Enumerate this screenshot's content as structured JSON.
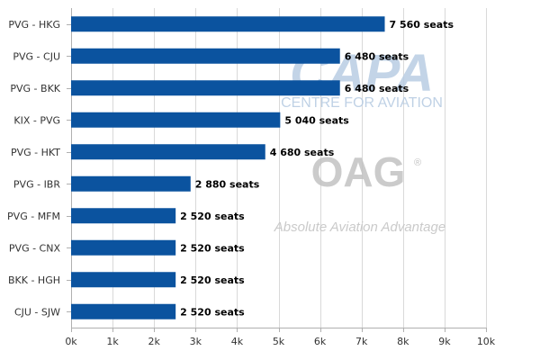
{
  "chart_data": {
    "type": "bar",
    "orientation": "horizontal",
    "categories": [
      "PVG - HKG",
      "PVG - CJU",
      "PVG - BKK",
      "KIX - PVG",
      "PVG - HKT",
      "PVG - IBR",
      "PVG - MFM",
      "PVG - CNX",
      "BKK - HGH",
      "CJU - SJW"
    ],
    "values": [
      7560,
      6480,
      6480,
      5040,
      4680,
      2880,
      2520,
      2520,
      2520,
      2520
    ],
    "data_labels": [
      "7 560 seats",
      "6 480 seats",
      "6 480 seats",
      "5 040 seats",
      "4 680 seats",
      "2 880 seats",
      "2 520 seats",
      "2 520 seats",
      "2 520 seats",
      "2 520 seats"
    ],
    "xlim": [
      0,
      10000
    ],
    "xticks": [
      0,
      1000,
      2000,
      3000,
      4000,
      5000,
      6000,
      7000,
      8000,
      9000,
      10000
    ],
    "xtick_labels": [
      "0k",
      "1k",
      "2k",
      "3k",
      "4k",
      "5k",
      "6k",
      "7k",
      "8k",
      "9k",
      "10k"
    ],
    "grid": true,
    "bar_color": "#0b539f",
    "grid_color": "#d9d9d9"
  },
  "watermark": {
    "capa_logo": "CAPA",
    "capa_subtitle": "CENTRE FOR AVIATION",
    "oag_logo": "OAG",
    "oag_registered": "®",
    "oag_tagline": "Absolute Aviation Advantage"
  }
}
